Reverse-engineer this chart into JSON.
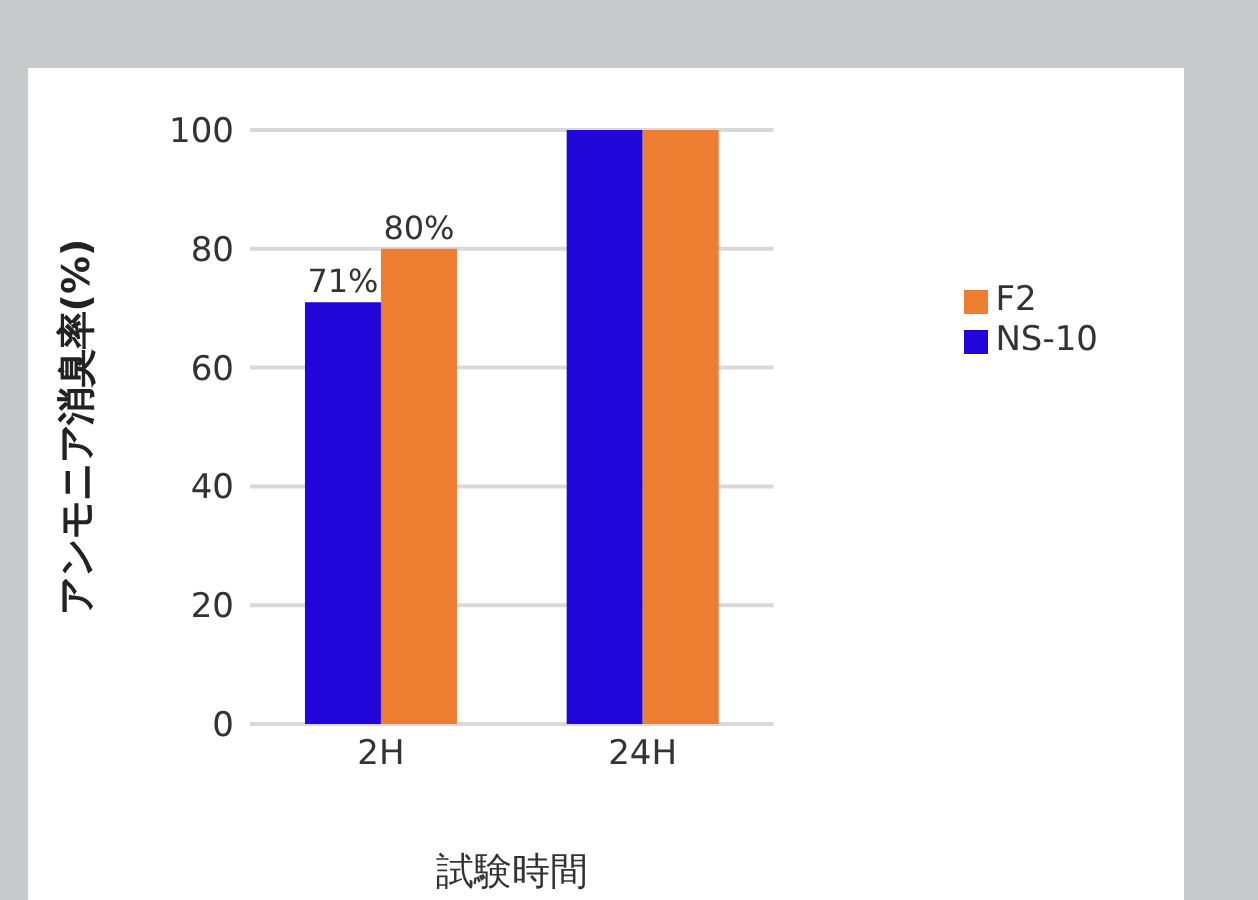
{
  "chart_data": {
    "type": "bar",
    "xlabel": "試験時間",
    "ylabel": "アンモニア消臭率(%)",
    "categories": [
      "2H",
      "24H"
    ],
    "series": [
      {
        "name": "NS-10",
        "color": "#2105d9",
        "values": [
          71,
          100
        ],
        "value_labels": [
          "71%",
          null
        ]
      },
      {
        "name": "F2",
        "color": "#ed7d31",
        "values": [
          80,
          100
        ],
        "value_labels": [
          "80%",
          null
        ]
      }
    ],
    "ylim": [
      0,
      100
    ],
    "yticks": [
      0,
      20,
      40,
      60,
      80,
      100
    ],
    "grid": "y",
    "legend": "right"
  }
}
